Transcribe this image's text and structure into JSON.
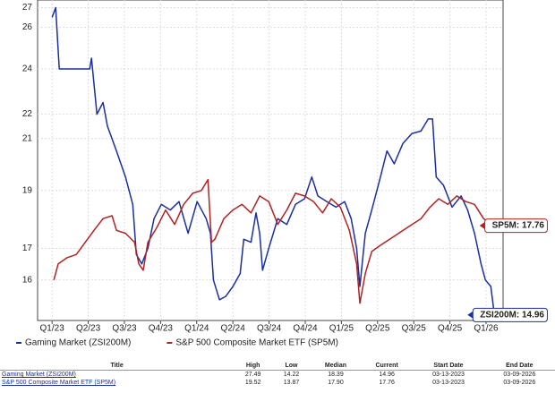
{
  "chart_data": {
    "type": "line",
    "yscale": "log",
    "grid": true,
    "ylim": [
      14.8,
      27.4
    ],
    "yticks": [
      16,
      17,
      19,
      21,
      22,
      24,
      26,
      27
    ],
    "xlim": [
      -0.4,
      12.47
    ],
    "xticks": [
      {
        "value": 0,
        "label": "Q1/23"
      },
      {
        "value": 1,
        "label": "Q2/23"
      },
      {
        "value": 2,
        "label": "Q3/23"
      },
      {
        "value": 3,
        "label": "Q4/23"
      },
      {
        "value": 4,
        "label": "Q1/24"
      },
      {
        "value": 5,
        "label": "Q2/24"
      },
      {
        "value": 6,
        "label": "Q3/24"
      },
      {
        "value": 7,
        "label": "Q4/24"
      },
      {
        "value": 8,
        "label": "Q1/25"
      },
      {
        "value": 9,
        "label": "Q2/25"
      },
      {
        "value": 10,
        "label": "Q3/25"
      },
      {
        "value": 11,
        "label": "Q4/25"
      },
      {
        "value": 12,
        "label": "Q1/26"
      }
    ],
    "series": [
      {
        "name": "Gaming Market (ZSI200M)",
        "color": "#1a2fa0",
        "end_label": "ZSI200M: 14.96",
        "x": [
          0,
          0.1,
          0.2,
          0.3,
          0.67,
          1.04,
          1.09,
          1.24,
          1.41,
          1.53,
          1.78,
          2.03,
          2.23,
          2.33,
          2.48,
          2.65,
          2.82,
          3.02,
          3.27,
          3.51,
          3.76,
          4.01,
          4.26,
          4.38,
          4.46,
          4.63,
          4.8,
          5.0,
          5.2,
          5.3,
          5.5,
          5.64,
          5.74,
          5.82,
          5.99,
          6.24,
          6.49,
          6.73,
          6.98,
          7.18,
          7.35,
          7.6,
          7.85,
          8.09,
          8.27,
          8.42,
          8.51,
          8.66,
          8.84,
          9.08,
          9.26,
          9.46,
          9.7,
          9.95,
          10.2,
          10.4,
          10.52,
          10.62,
          10.82,
          11.06,
          11.31,
          11.49,
          11.68,
          11.86,
          11.98,
          12.13,
          12.23
        ],
        "values": [
          26.5,
          27,
          24,
          24,
          24,
          24,
          24.5,
          22,
          22.5,
          21.5,
          20.5,
          19.5,
          18.5,
          16.8,
          16.5,
          17,
          18,
          18.5,
          18.3,
          18.6,
          17.5,
          18.6,
          18,
          17.5,
          16,
          15.4,
          15.5,
          15.8,
          16.2,
          17.3,
          17.2,
          18.2,
          17.5,
          16.3,
          17,
          18,
          17.8,
          18.5,
          18.7,
          19.5,
          18.8,
          18.6,
          18.4,
          18.6,
          18,
          17,
          15.8,
          17.5,
          18.3,
          19.5,
          20.5,
          20,
          20.8,
          21.2,
          21.3,
          21.8,
          21.8,
          19.5,
          19.2,
          18.4,
          18.8,
          18.3,
          17.5,
          16.5,
          16,
          15.8,
          14.96
        ]
      },
      {
        "name": "S&P 500 Composite Market ETF (SP5M)",
        "color": "#b22222",
        "end_label": "SP5M: 17.76",
        "x": [
          0.05,
          0.17,
          0.42,
          0.67,
          0.92,
          1.16,
          1.41,
          1.66,
          1.78,
          2.03,
          2.28,
          2.4,
          2.52,
          2.65,
          2.9,
          3.14,
          3.39,
          3.64,
          3.89,
          4.13,
          4.31,
          4.41,
          4.5,
          4.75,
          5.0,
          5.25,
          5.5,
          5.74,
          5.99,
          6.24,
          6.49,
          6.73,
          6.98,
          7.23,
          7.48,
          7.72,
          7.97,
          8.22,
          8.42,
          8.51,
          8.66,
          8.84,
          9.08,
          9.46,
          9.83,
          10.2,
          10.45,
          10.69,
          10.94,
          11.19,
          11.44,
          11.68,
          11.93,
          12.23
        ],
        "values": [
          16,
          16.5,
          16.7,
          16.8,
          17.2,
          17.6,
          18,
          18.1,
          17.6,
          17.5,
          17.2,
          16.5,
          16.3,
          17.2,
          17.7,
          18.3,
          17.8,
          18.5,
          18.9,
          19,
          19.4,
          17.2,
          17.3,
          18,
          18.3,
          18.5,
          18.2,
          18.8,
          18.6,
          17.8,
          18.3,
          18.9,
          18.8,
          18.6,
          18.2,
          18.7,
          18.4,
          17.6,
          16.5,
          15.3,
          16.2,
          16.9,
          17.1,
          17.4,
          17.7,
          18.0,
          18.4,
          18.7,
          18.5,
          18.8,
          18.6,
          18.5,
          18.0,
          17.76
        ]
      }
    ]
  },
  "table": {
    "header": [
      "Title",
      "High",
      "Low",
      "Median",
      "Current",
      "Start Date",
      "End Date"
    ],
    "rows": [
      [
        "Gaming Market (ZSI200M)",
        "27.49",
        "14.22",
        "18.39",
        "14.96",
        "03-13-2023",
        "03-09-2026"
      ],
      [
        "S&P 500 Composite Market ETF (SP5M)",
        "19.52",
        "13.87",
        "17.90",
        "17.76",
        "03-13-2023",
        "03-09-2026"
      ]
    ]
  }
}
